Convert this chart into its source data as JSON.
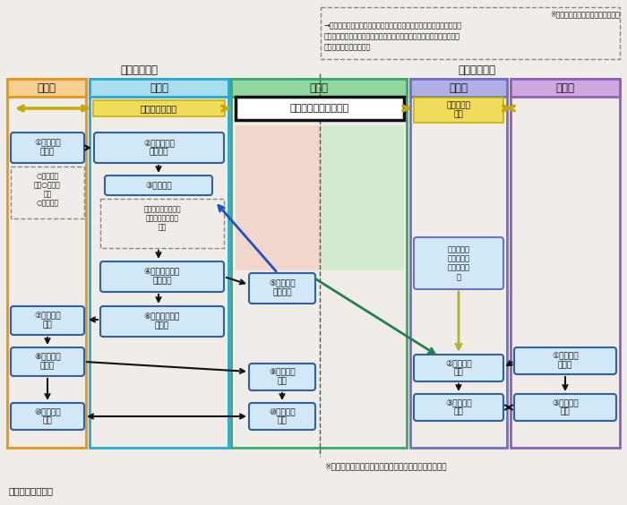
{
  "bg_color": "#f0ede8",
  "title_note": "※保育の必要性の認定を受けた場合",
  "note_line1": "→　優先利用については市町村が調整、それ以外は利用者が事業者に直",
  "note_line2": "　　接申込み（必要に応じて市町村が利用調整）、第２希望以降は優先",
  "note_line3": "　　利用と同様に調整。",
  "source": "出典：内閣府資料",
  "footer_note": "※第２希望以降については、優先利用と同様の仕組み。",
  "left_section_label": "【優先利用】",
  "right_section_label": "【通常利用】",
  "orange_border": "#e8941a",
  "blue_border": "#29a8d4",
  "green_border": "#3aaa6a",
  "purple_border": "#7070c8",
  "violet_border": "#9060b8",
  "box_fill": "#d0e8f8",
  "box_border": "#3060a8",
  "yellow_fill": "#f0dc5a",
  "yellow_border": "#c8b000",
  "salmon_fill": "#f2c8b8",
  "ltgreen_fill": "#c0e8c0"
}
